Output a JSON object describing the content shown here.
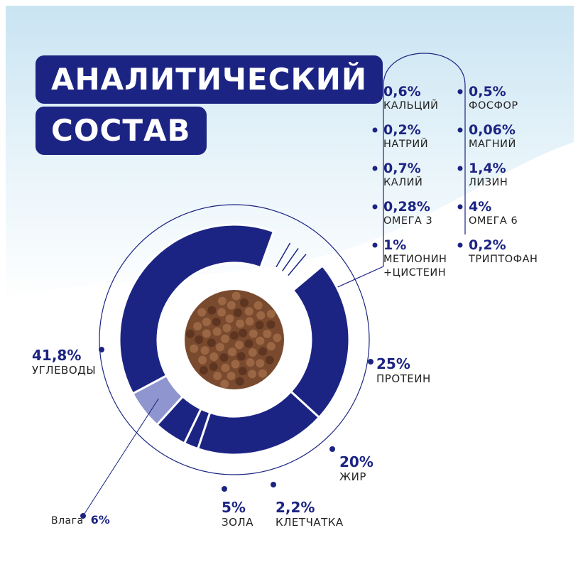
{
  "header": {
    "title_line1": "АНАЛИТИЧЕСКИЙ",
    "title_line2": "СОСТАВ"
  },
  "chart_data": {
    "type": "pie",
    "categories": [
      "ПРОТЕИН",
      "ЖИР",
      "КЛЕТЧАТКА",
      "ЗОЛА",
      "Влага",
      "УГЛЕВОДЫ"
    ],
    "values": [
      25,
      20,
      2.2,
      5,
      6,
      41.8
    ],
    "value_labels": [
      "25%",
      "20%",
      "2,2%",
      "5%",
      "6%",
      "41,8%"
    ],
    "colors": [
      "#1c2483",
      "#1c2483",
      "#1c2483",
      "#1c2483",
      "#8f95cf",
      "#1c2483"
    ]
  },
  "minerals": {
    "left": [
      {
        "value_label": "0,6%",
        "name": "КАЛЬЦИЙ"
      },
      {
        "value_label": "0,2%",
        "name": "НАТРИЙ"
      },
      {
        "value_label": "0,7%",
        "name": "КАЛИЙ"
      },
      {
        "value_label": "0,28%",
        "name": "ОМЕГА 3"
      },
      {
        "value_label": "1%",
        "name": "МЕТИОНИН +ЦИСТЕИН"
      }
    ],
    "right": [
      {
        "value_label": "0,5%",
        "name": "ФОСФОР"
      },
      {
        "value_label": "0,06%",
        "name": "МАГНИЙ"
      },
      {
        "value_label": "1,4%",
        "name": "ЛИЗИН"
      },
      {
        "value_label": "4%",
        "name": "ОМЕГА 6"
      },
      {
        "value_label": "0,2%",
        "name": "ТРИПТОФАН"
      }
    ]
  }
}
